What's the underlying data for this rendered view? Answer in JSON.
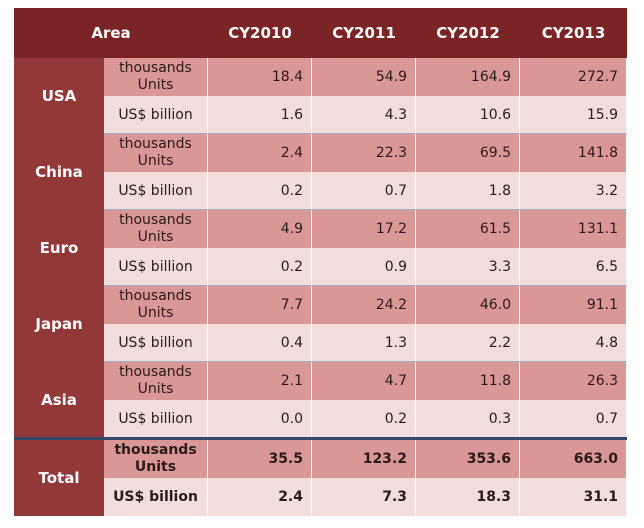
{
  "header": {
    "area": "Area",
    "years": [
      "CY2010",
      "CY2011",
      "CY2012",
      "CY2013"
    ]
  },
  "regions": [
    {
      "name": "USA",
      "units_label": "thousands Units",
      "units": [
        "18.4",
        "54.9",
        "164.9",
        "272.7"
      ],
      "usd_label": "US$ billion",
      "usd": [
        "1.6",
        "4.3",
        "10.6",
        "15.9"
      ]
    },
    {
      "name": "China",
      "units_label": "thousands Units",
      "units": [
        "2.4",
        "22.3",
        "69.5",
        "141.8"
      ],
      "usd_label": "US$ billion",
      "usd": [
        "0.2",
        "0.7",
        "1.8",
        "3.2"
      ]
    },
    {
      "name": "Euro",
      "units_label": "thousands Units",
      "units": [
        "4.9",
        "17.2",
        "61.5",
        "131.1"
      ],
      "usd_label": "US$ billion",
      "usd": [
        "0.2",
        "0.9",
        "3.3",
        "6.5"
      ]
    },
    {
      "name": "Japan",
      "units_label": "thousands Units",
      "units": [
        "7.7",
        "24.2",
        "46.0",
        "91.1"
      ],
      "usd_label": "US$ billion",
      "usd": [
        "0.4",
        "1.3",
        "2.2",
        "4.8"
      ]
    },
    {
      "name": "Asia",
      "units_label": "thousands Units",
      "units": [
        "2.1",
        "4.7",
        "11.8",
        "26.3"
      ],
      "usd_label": "US$ billion",
      "usd": [
        "0.0",
        "0.2",
        "0.3",
        "0.7"
      ]
    }
  ],
  "total": {
    "name": "Total",
    "units_label": "thousands Units",
    "units": [
      "35.5",
      "123.2",
      "353.6",
      "663.0"
    ],
    "usd_label": "US$ billion",
    "usd": [
      "2.4",
      "7.3",
      "18.3",
      "31.1"
    ]
  },
  "colors": {
    "header_bg": "#7b2426",
    "area_bg": "#923839",
    "row_dark": "#d99796",
    "row_light": "#f3dcdc",
    "separator": "#9bb0cc",
    "total_separator": "#2f4868"
  }
}
